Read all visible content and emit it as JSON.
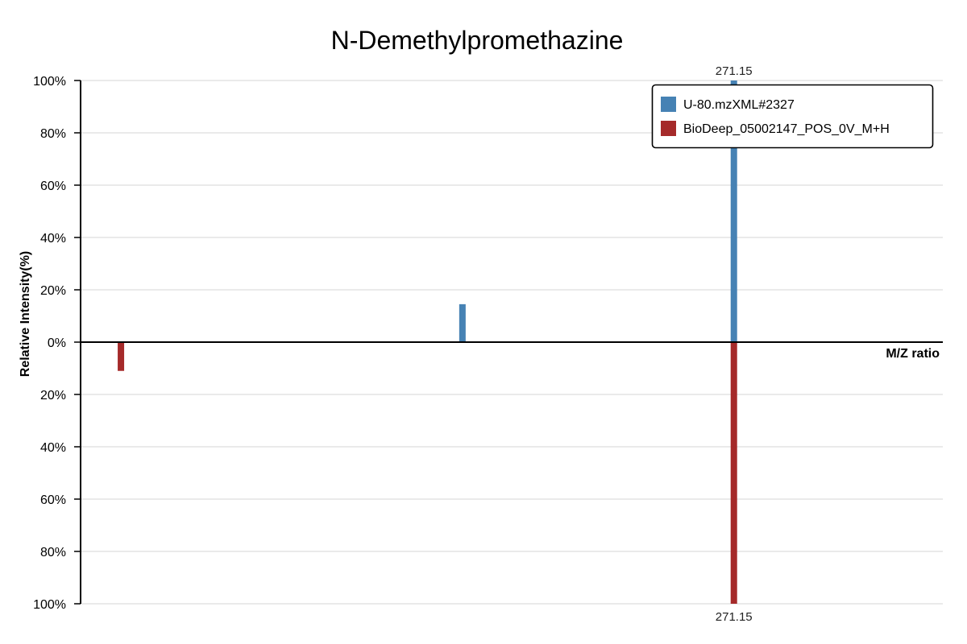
{
  "chart_data": {
    "type": "bar",
    "mirrored": true,
    "title": "N-Demethylpromethazine",
    "xlabel": "M/Z ratio",
    "ylabel": "Relative Intensity(%)",
    "xlim": [
      59,
      339
    ],
    "ylim": [
      0,
      100
    ],
    "grid": true,
    "legend_position": "top-right",
    "y_ticks": {
      "top": [
        {
          "value": 0,
          "label": "0%"
        },
        {
          "value": 20,
          "label": "20%"
        },
        {
          "value": 40,
          "label": "40%"
        },
        {
          "value": 60,
          "label": "60%"
        },
        {
          "value": 80,
          "label": "80%"
        },
        {
          "value": 100,
          "label": "100%"
        }
      ],
      "bottom": [
        {
          "value": 20,
          "label": "20%"
        },
        {
          "value": 40,
          "label": "40%"
        },
        {
          "value": 60,
          "label": "60%"
        },
        {
          "value": 80,
          "label": "80%"
        },
        {
          "value": 100,
          "label": "100%"
        }
      ]
    },
    "series": [
      {
        "name": "U-80.mzXML#2327",
        "color": "#4682B4",
        "side": "top",
        "x": [
          183.0,
          271.15
        ],
        "y": [
          14.5,
          100
        ],
        "labels": [
          null,
          "271.15"
        ]
      },
      {
        "name": "BioDeep_05002147_POS_0V_M+H",
        "color": "#A52A2A",
        "side": "bottom",
        "x": [
          72.1,
          271.15
        ],
        "y": [
          11,
          100
        ],
        "labels": [
          null,
          "271.15"
        ]
      }
    ]
  }
}
